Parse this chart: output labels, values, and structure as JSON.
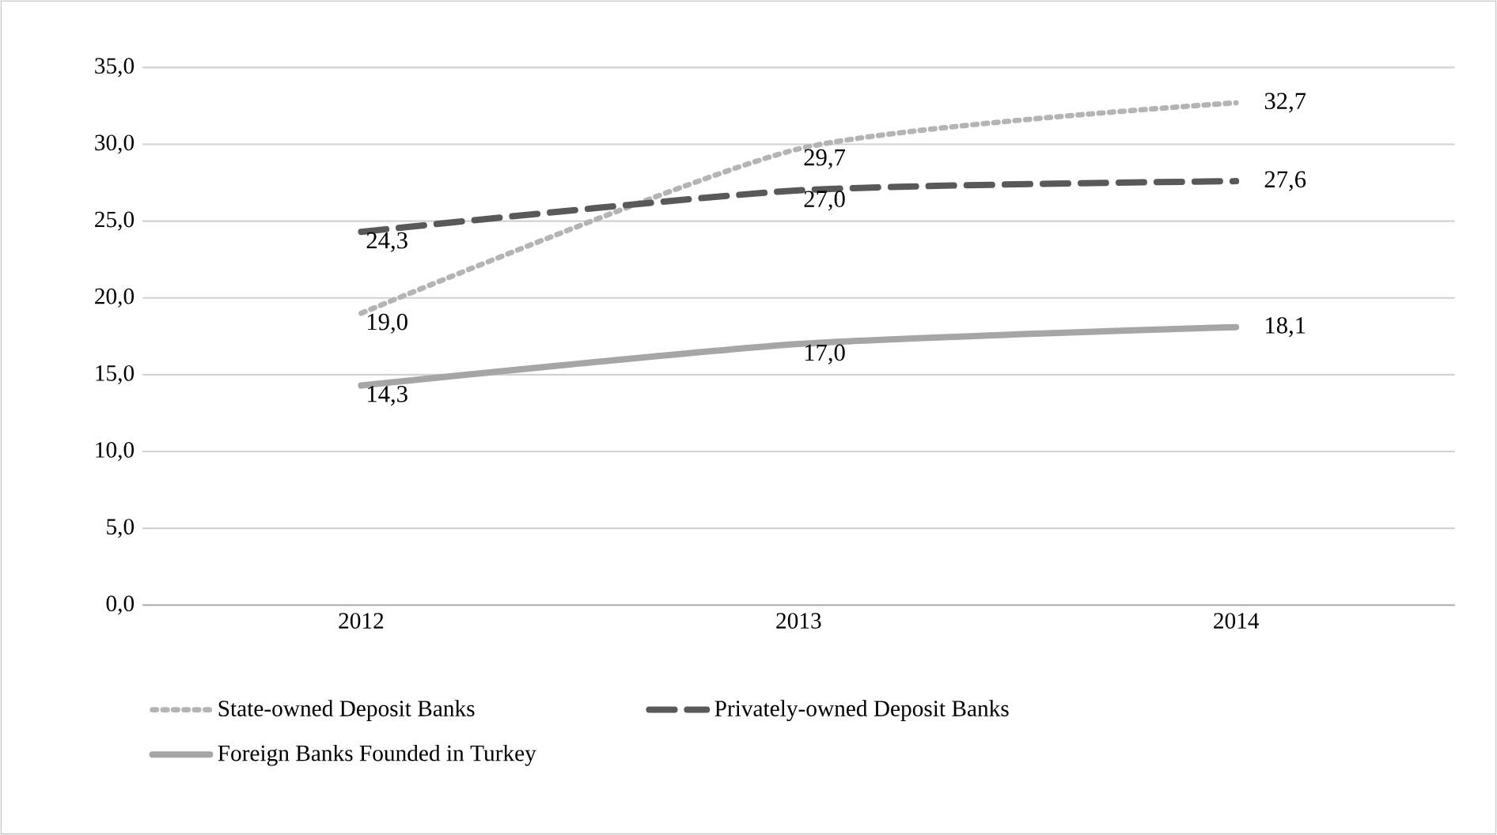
{
  "chart_data": {
    "type": "line",
    "categories": [
      "2012",
      "2013",
      "2014"
    ],
    "series": [
      {
        "name": "State-owned Deposit Banks",
        "color": "#b4b4b4",
        "line_style": "dotted",
        "values": [
          19.0,
          29.7,
          32.7
        ],
        "value_labels": [
          "19,0",
          "29,7",
          "32,7"
        ]
      },
      {
        "name": "Privately-owned Deposit Banks",
        "color": "#595959",
        "line_style": "dashed",
        "values": [
          24.3,
          27.0,
          27.6
        ],
        "value_labels": [
          "24,3",
          "27,0",
          "27,6"
        ]
      },
      {
        "name": "Foreign Banks Founded in Turkey",
        "color": "#a6a6a6",
        "line_style": "solid",
        "values": [
          14.3,
          17.0,
          18.1
        ],
        "value_labels": [
          "14,3",
          "17,0",
          "18,1"
        ]
      }
    ],
    "ylim": [
      0,
      35
    ],
    "yticks": [
      {
        "value": 0,
        "label": "0,0"
      },
      {
        "value": 5,
        "label": "5,0"
      },
      {
        "value": 10,
        "label": "10,0"
      },
      {
        "value": 15,
        "label": "15,0"
      },
      {
        "value": 20,
        "label": "20,0"
      },
      {
        "value": 25,
        "label": "25,0"
      },
      {
        "value": 30,
        "label": "30,0"
      },
      {
        "value": 35,
        "label": "35,0"
      }
    ],
    "grid": "y",
    "legend": "bottom"
  }
}
